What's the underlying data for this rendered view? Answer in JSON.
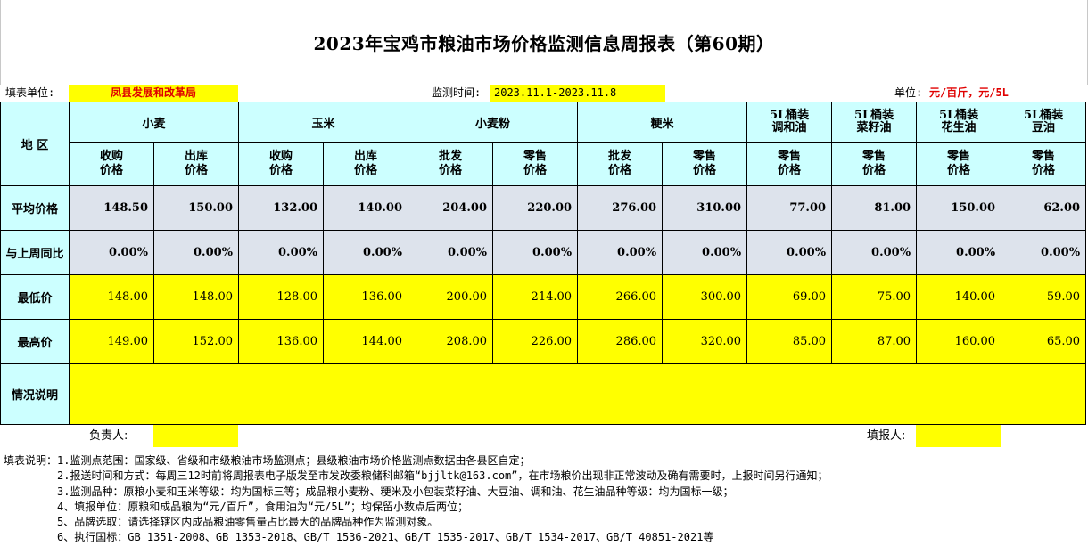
{
  "title": "2023年宝鸡市粮油市场价格监测信息周报表（第60期）",
  "info": {
    "unit_label": "填表单位:",
    "unit_value": "凤县发展和改革局",
    "time_label": "监测时间:",
    "time_value": "2023.11.1-2023.11.8",
    "measure_label": "单位:",
    "measure_value": "元/百斤，元/5L"
  },
  "table": {
    "region_label": "地 区",
    "groups": [
      "小麦",
      "玉米",
      "小麦粉",
      "粳米"
    ],
    "oil_groups": [
      {
        "line1": "5L桶装",
        "line2": "调和油"
      },
      {
        "line1": "5L桶装",
        "line2": "菜籽油"
      },
      {
        "line1": "5L桶装",
        "line2": "花生油"
      },
      {
        "line1": "5L桶装",
        "line2": "豆油"
      }
    ],
    "subheaders": [
      {
        "line1": "收购",
        "line2": "价格"
      },
      {
        "line1": "出库",
        "line2": "价格"
      },
      {
        "line1": "收购",
        "line2": "价格"
      },
      {
        "line1": "出库",
        "line2": "价格"
      },
      {
        "line1": "批发",
        "line2": "价格"
      },
      {
        "line1": "零售",
        "line2": "价格"
      },
      {
        "line1": "批发",
        "line2": "价格"
      },
      {
        "line1": "零售",
        "line2": "价格"
      },
      {
        "line1": "零售",
        "line2": "价格"
      },
      {
        "line1": "零售",
        "line2": "价格"
      },
      {
        "line1": "零售",
        "line2": "价格"
      },
      {
        "line1": "零售",
        "line2": "价格"
      }
    ],
    "rows": {
      "avg": {
        "label": "平均价格",
        "values": [
          "148.50",
          "150.00",
          "132.00",
          "140.00",
          "204.00",
          "220.00",
          "276.00",
          "310.00",
          "77.00",
          "81.00",
          "150.00",
          "62.00"
        ]
      },
      "cmp": {
        "label": "与上周同比",
        "values": [
          "0.00%",
          "0.00%",
          "0.00%",
          "0.00%",
          "0.00%",
          "0.00%",
          "0.00%",
          "0.00%",
          "0.00%",
          "0.00%",
          "0.00%",
          "0.00%"
        ]
      },
      "low": {
        "label": "最低价",
        "values": [
          "148.00",
          "148.00",
          "128.00",
          "136.00",
          "200.00",
          "214.00",
          "266.00",
          "300.00",
          "69.00",
          "75.00",
          "140.00",
          "59.00"
        ]
      },
      "high": {
        "label": "最高价",
        "values": [
          "149.00",
          "152.00",
          "136.00",
          "144.00",
          "208.00",
          "226.00",
          "286.00",
          "320.00",
          "85.00",
          "87.00",
          "160.00",
          "65.00"
        ]
      }
    },
    "note_label": "情况说明",
    "note_value": ""
  },
  "sign": {
    "responsible_label": "负责人:",
    "filler_label": "填报人:"
  },
  "notes": [
    "填表说明：1.监测点范围：国家级、省级和市级粮油市场监测点；县级粮油市场价格监测点数据由各县区自定；",
    "2.报送时间和方式：每周三12时前将周报表电子版发至市发改委粮储科邮箱“bjjltk@163.com”，在市场粮价出现非正常波动及确有需要时，上报时间另行通知；",
    "3.监测品种：原粮小麦和玉米等级：均为国标三等；成品粮小麦粉、粳米及小包装菜籽油、大豆油、调和油、花生油品种等级：均为国标一级；",
    "4、填报单位：原粮和成品粮为“元/百斤”，食用油为“元/5L”；均保留小数点后两位；",
    "5、品牌选取：请选择辖区内成品粮油零售量占比最大的品牌品种作为监测对象。",
    "6、执行国标：GB 1351-2008、GB 1353-2018、GB/T 1536-2021、GB/T 1535-2017、GB/T 1534-2017、GB/T 40851-2021等"
  ]
}
